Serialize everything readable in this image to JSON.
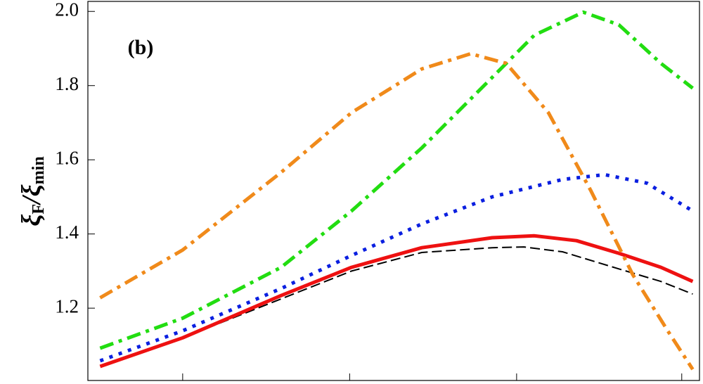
{
  "chart_data": {
    "type": "line",
    "annotation": "(b)",
    "ylabel": [
      "ξ",
      "F",
      "/ξ",
      "min"
    ],
    "xlim": [
      0,
      1
    ],
    "xticks": [
      0.155,
      0.428,
      0.701,
      0.971
    ],
    "ylim": [
      1.005,
      2.027
    ],
    "yticks": [
      1.2,
      1.4,
      1.6,
      1.8,
      {
        "value": 2,
        "label": "2.0"
      }
    ],
    "series": [
      {
        "color": "#000000",
        "dash": "dashed",
        "width": 2,
        "x": [
          0.02,
          0.155,
          0.316,
          0.431,
          0.546,
          0.661,
          0.713,
          0.776,
          0.868,
          0.937,
          0.989
        ],
        "values": [
          1.045,
          1.12,
          1.225,
          1.3,
          1.35,
          1.363,
          1.365,
          1.352,
          1.306,
          1.272,
          1.238
        ]
      },
      {
        "color": "#ee1111",
        "dash": "solid",
        "width": 5,
        "x": [
          0.02,
          0.155,
          0.316,
          0.431,
          0.546,
          0.661,
          0.73,
          0.799,
          0.868,
          0.937,
          0.989
        ],
        "values": [
          1.043,
          1.12,
          1.234,
          1.31,
          1.363,
          1.39,
          1.395,
          1.382,
          1.348,
          1.31,
          1.272
        ]
      },
      {
        "color": "#0a1fe0",
        "dash": "dotted",
        "width": 5,
        "x": [
          0.02,
          0.155,
          0.316,
          0.431,
          0.546,
          0.661,
          0.776,
          0.845,
          0.914,
          0.989
        ],
        "values": [
          1.058,
          1.139,
          1.253,
          1.342,
          1.427,
          1.5,
          1.547,
          1.56,
          1.537,
          1.462
        ]
      },
      {
        "color": "#22dd11",
        "dash": "dashdot",
        "width": 5,
        "x": [
          0.02,
          0.155,
          0.316,
          0.431,
          0.546,
          0.661,
          0.73,
          0.81,
          0.868,
          0.937,
          0.989
        ],
        "values": [
          1.092,
          1.173,
          1.31,
          1.462,
          1.632,
          1.822,
          1.936,
          1.998,
          1.964,
          1.86,
          1.793
        ]
      },
      {
        "color": "#f08a1a",
        "dash": "dashdot",
        "width": 5,
        "x": [
          0.02,
          0.155,
          0.316,
          0.431,
          0.546,
          0.626,
          0.684,
          0.753,
          0.822,
          0.891,
          0.948,
          0.989
        ],
        "values": [
          1.228,
          1.357,
          1.566,
          1.727,
          1.845,
          1.886,
          1.86,
          1.727,
          1.518,
          1.29,
          1.139,
          1.035
        ]
      }
    ]
  }
}
